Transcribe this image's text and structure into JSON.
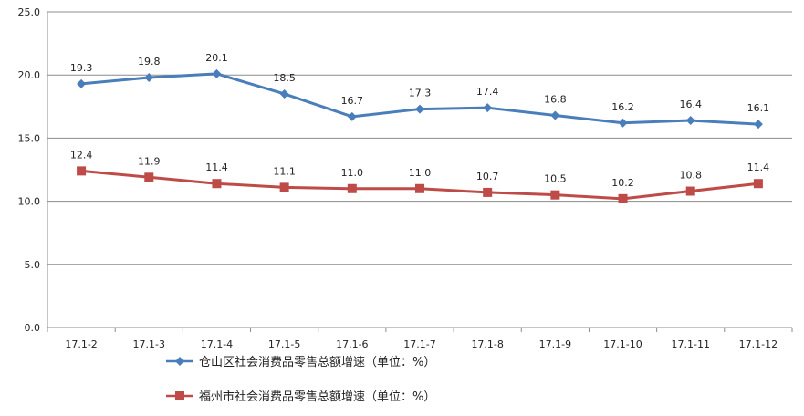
{
  "chart_data": {
    "type": "line",
    "categories": [
      "17.1-2",
      "17.1-3",
      "17.1-4",
      "17.1-5",
      "17.1-6",
      "17.1-7",
      "17.1-8",
      "17.1-9",
      "17.1-10",
      "17.1-11",
      "17.1-12"
    ],
    "ylim": [
      0,
      25
    ],
    "yticks": [
      "0.0",
      "5.0",
      "10.0",
      "15.0",
      "20.0",
      "25.0"
    ],
    "grid": true,
    "legend_position": "bottom-left",
    "series": [
      {
        "name": "仓山区社会消费品零售总额增速（单位：%）",
        "color": "#4a7ebb",
        "marker": "diamond",
        "values": [
          19.3,
          19.8,
          20.1,
          18.5,
          16.7,
          17.3,
          17.4,
          16.8,
          16.2,
          16.4,
          16.1
        ],
        "labels": [
          "19.3",
          "19.8",
          "20.1",
          "18.5",
          "16.7",
          "17.3",
          "17.4",
          "16.8",
          "16.2",
          "16.4",
          "16.1"
        ]
      },
      {
        "name": "福州市社会消费品零售总额增速（单位：%）",
        "color": "#be4b48",
        "marker": "square",
        "values": [
          12.4,
          11.9,
          11.4,
          11.1,
          11.0,
          11.0,
          10.7,
          10.5,
          10.2,
          10.8,
          11.4
        ],
        "labels": [
          "12.4",
          "11.9",
          "11.4",
          "11.1",
          "11.0",
          "11.0",
          "10.7",
          "10.5",
          "10.2",
          "10.8",
          "11.4"
        ]
      }
    ]
  }
}
